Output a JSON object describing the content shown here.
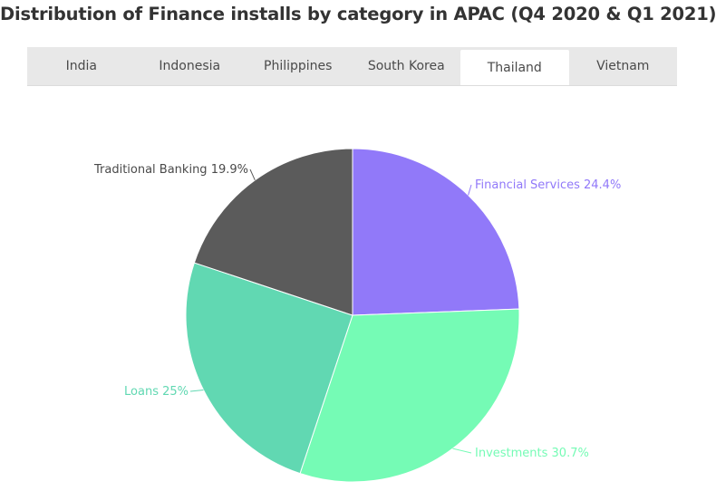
{
  "title": "Distribution of Finance installs by category in APAC (Q4 2020 & Q1 2021)",
  "tabs": [
    {
      "label": "India",
      "active": false
    },
    {
      "label": "Indonesia",
      "active": false
    },
    {
      "label": "Philippines",
      "active": false
    },
    {
      "label": "South Korea",
      "active": false
    },
    {
      "label": "Thailand",
      "active": true
    },
    {
      "label": "Vietnam",
      "active": false
    }
  ],
  "chart_data": {
    "type": "pie",
    "slices": [
      {
        "label": "Financial Services",
        "value": 24.4,
        "display": "Financial Services 24.4%",
        "color": "#9179f9"
      },
      {
        "label": "Investments",
        "value": 30.7,
        "display": "Investments 30.7%",
        "color": "#75fbb5"
      },
      {
        "label": "Loans",
        "value": 25,
        "display": "Loans 25%",
        "color": "#61d8b2"
      },
      {
        "label": "Traditional Banking",
        "value": 19.9,
        "display": "Traditional Banking 19.9%",
        "color": "#5b5b5b"
      }
    ],
    "start_angle_deg": 0,
    "direction": "clockwise"
  }
}
